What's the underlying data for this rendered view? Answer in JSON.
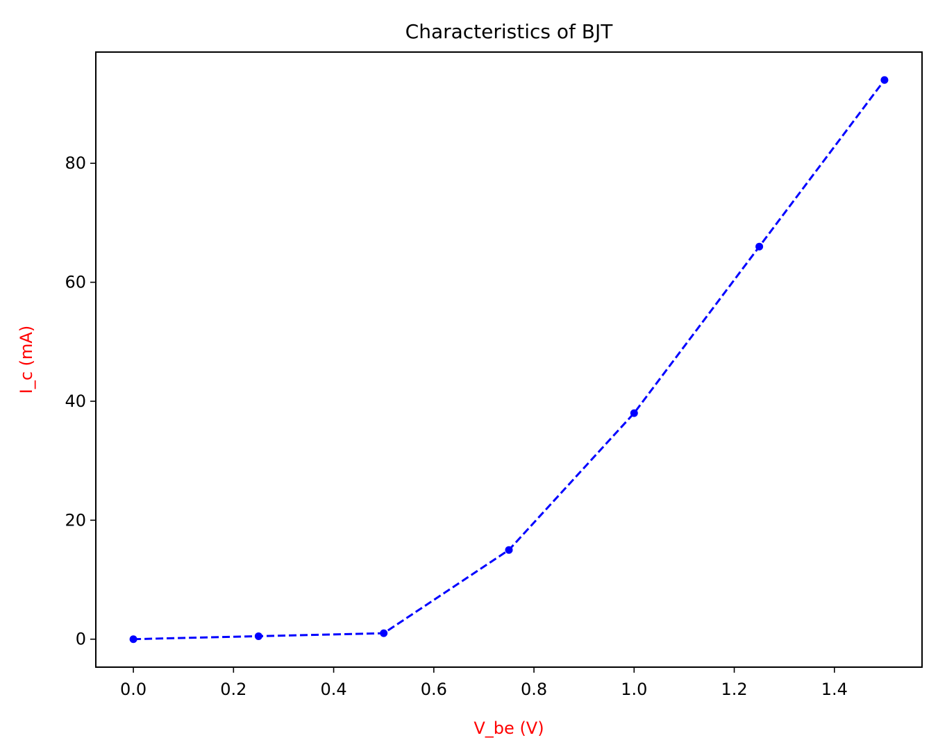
{
  "chart_data": {
    "type": "line",
    "title": "Characteristics of BJT",
    "xlabel": "V_be (V)",
    "ylabel": "I_c (mA)",
    "xlim": [
      -0.075,
      1.575
    ],
    "ylim": [
      -4.7,
      98.7
    ],
    "grid": false,
    "x_ticks": [
      "0.0",
      "0.2",
      "0.4",
      "0.6",
      "0.8",
      "1.0",
      "1.2",
      "1.4"
    ],
    "y_ticks": [
      "0",
      "20",
      "40",
      "60",
      "80"
    ],
    "series": [
      {
        "x": [
          0.0,
          0.25,
          0.5,
          0.75,
          1.0,
          1.25,
          1.5
        ],
        "y": [
          0,
          0.5,
          1,
          15,
          38,
          66,
          94
        ],
        "color": "#0000ff",
        "line_style": "dashed",
        "marker": "circle"
      }
    ],
    "label_color": "#ff0000"
  }
}
